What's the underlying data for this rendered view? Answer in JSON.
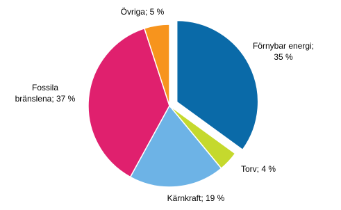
{
  "chart_data": {
    "type": "pie",
    "values": [
      35,
      4,
      19,
      37,
      5
    ],
    "value_labels": [
      [
        "Förnybar energi;",
        "35 %"
      ],
      [
        "Torv;  4 %"
      ],
      [
        "Kärnkraft;  19 %"
      ],
      [
        "Fossila",
        "bränslena;  37 %"
      ],
      [
        "Övriga;  5 %"
      ]
    ],
    "colors": [
      "#0a6aa8",
      "#c5d92d",
      "#6db3e6",
      "#e0206e",
      "#f7941d"
    ],
    "explode": [
      true,
      false,
      false,
      false,
      false
    ]
  }
}
